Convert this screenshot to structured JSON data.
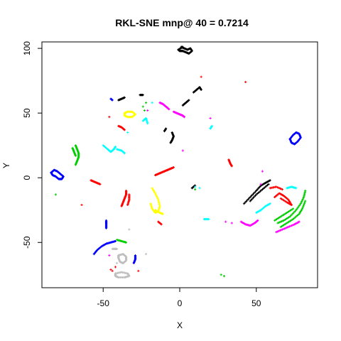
{
  "chart_data": {
    "type": "scatter",
    "title": "RKL-SNE mnp@ 40 = 0.7214",
    "xlabel": "X",
    "ylabel": "Y",
    "xlim": [
      -90,
      90
    ],
    "ylim": [
      -85,
      105
    ],
    "x_ticks": [
      -50,
      0,
      50
    ],
    "y_ticks": [
      -50,
      0,
      50,
      100
    ],
    "grid": false,
    "legend": "none",
    "clusters": [
      {
        "color": "#000000",
        "shape": "loop",
        "points": [
          [
            1,
            101
          ],
          [
            3,
            100
          ],
          [
            5,
            99
          ],
          [
            7,
            100
          ],
          [
            8,
            98
          ],
          [
            6,
            96
          ],
          [
            4,
            97
          ],
          [
            2,
            98
          ],
          [
            0,
            98
          ],
          [
            -1,
            99
          ],
          [
            2,
            101
          ]
        ]
      },
      {
        "color": "#000000",
        "shape": "stroke",
        "points": [
          [
            9,
            66
          ],
          [
            11,
            68
          ],
          [
            13,
            70
          ],
          [
            14,
            68
          ]
        ]
      },
      {
        "color": "#000000",
        "shape": "stroke",
        "points": [
          [
            2,
            56
          ],
          [
            4,
            58
          ],
          [
            6,
            60
          ]
        ]
      },
      {
        "color": "#000000",
        "shape": "stroke",
        "points": [
          [
            -5,
            35
          ],
          [
            -4,
            32
          ],
          [
            -5,
            29
          ],
          [
            -6,
            27
          ]
        ]
      },
      {
        "color": "#000000",
        "shape": "stroke",
        "points": [
          [
            -10,
            36
          ],
          [
            -9,
            38
          ]
        ]
      },
      {
        "color": "#000000",
        "shape": "stroke",
        "points": [
          [
            -40,
            60
          ],
          [
            -38,
            61
          ],
          [
            -36,
            62
          ]
        ]
      },
      {
        "color": "#000000",
        "shape": "stroke",
        "points": [
          [
            -26,
            64
          ],
          [
            -24,
            64
          ]
        ]
      },
      {
        "color": "#000000",
        "shape": "stroke",
        "points": [
          [
            42,
            -20
          ],
          [
            46,
            -15
          ],
          [
            50,
            -10
          ],
          [
            53,
            -6
          ],
          [
            56,
            -4
          ],
          [
            59,
            -2
          ]
        ]
      },
      {
        "color": "#000000",
        "shape": "stroke",
        "points": [
          [
            46,
            -18
          ],
          [
            50,
            -13
          ],
          [
            54,
            -9
          ],
          [
            58,
            -5
          ]
        ]
      },
      {
        "color": "#000000",
        "shape": "stroke",
        "points": [
          [
            8,
            -8
          ],
          [
            10,
            -6
          ]
        ]
      },
      {
        "color": "#0000ff",
        "shape": "loop",
        "points": [
          [
            -84,
            4
          ],
          [
            -82,
            6
          ],
          [
            -80,
            5
          ],
          [
            -78,
            3
          ],
          [
            -76,
            1
          ],
          [
            -77,
            -1
          ],
          [
            -79,
            -1
          ],
          [
            -81,
            1
          ],
          [
            -83,
            2
          ]
        ]
      },
      {
        "color": "#0000ff",
        "shape": "loop",
        "points": [
          [
            72,
            30
          ],
          [
            74,
            33
          ],
          [
            76,
            35
          ],
          [
            78,
            34
          ],
          [
            79,
            31
          ],
          [
            77,
            28
          ],
          [
            75,
            26
          ],
          [
            73,
            27
          ],
          [
            72,
            30
          ]
        ]
      },
      {
        "color": "#0000ff",
        "shape": "stroke",
        "points": [
          [
            -56,
            -59
          ],
          [
            -54,
            -56
          ],
          [
            -51,
            -53
          ],
          [
            -48,
            -51
          ],
          [
            -45,
            -50
          ],
          [
            -42,
            -49
          ]
        ]
      },
      {
        "color": "#0000ff",
        "shape": "stroke",
        "points": [
          [
            -48,
            -33
          ],
          [
            -48,
            -36
          ],
          [
            -48,
            -39
          ]
        ]
      },
      {
        "color": "#0000ff",
        "shape": "stroke",
        "points": [
          [
            -29,
            -60
          ],
          [
            -29,
            -63
          ],
          [
            -30,
            -66
          ]
        ]
      },
      {
        "color": "#0000ff",
        "shape": "stroke",
        "points": [
          [
            -45,
            61
          ],
          [
            -44,
            60
          ]
        ]
      },
      {
        "color": "#00cd00",
        "shape": "stroke",
        "points": [
          [
            -68,
            25
          ],
          [
            -67,
            22
          ],
          [
            -66,
            19
          ],
          [
            -66,
            16
          ],
          [
            -67,
            13
          ],
          [
            -68,
            10
          ]
        ]
      },
      {
        "color": "#00cd00",
        "shape": "stroke",
        "points": [
          [
            -70,
            23
          ],
          [
            -69,
            20
          ],
          [
            -68,
            17
          ]
        ]
      },
      {
        "color": "#00cd00",
        "shape": "stroke",
        "points": [
          [
            64,
            -35
          ],
          [
            68,
            -33
          ],
          [
            72,
            -30
          ],
          [
            76,
            -25
          ],
          [
            79,
            -20
          ],
          [
            81,
            -15
          ],
          [
            82,
            -10
          ]
        ]
      },
      {
        "color": "#00cd00",
        "shape": "stroke",
        "points": [
          [
            66,
            -38
          ],
          [
            70,
            -35
          ],
          [
            74,
            -32
          ],
          [
            78,
            -28
          ],
          [
            80,
            -24
          ],
          [
            82,
            -18
          ]
        ]
      },
      {
        "color": "#00cd00",
        "shape": "stroke",
        "points": [
          [
            62,
            -33
          ],
          [
            66,
            -30
          ],
          [
            70,
            -27
          ],
          [
            74,
            -24
          ]
        ]
      },
      {
        "color": "#00cd00",
        "shape": "stroke",
        "points": [
          [
            -41,
            -48
          ],
          [
            -38,
            -49
          ],
          [
            -35,
            -50
          ]
        ]
      },
      {
        "color": "#00cd00",
        "shape": "dots",
        "points": [
          [
            -24,
            55
          ],
          [
            -22,
            58
          ],
          [
            -23,
            52
          ],
          [
            -81,
            -13
          ],
          [
            27,
            -75
          ],
          [
            29,
            -76
          ],
          [
            10,
            -9
          ]
        ]
      },
      {
        "color": "#ff0000",
        "shape": "stroke",
        "points": [
          [
            -16,
            2
          ],
          [
            -14,
            3
          ],
          [
            -12,
            4
          ],
          [
            -10,
            5
          ],
          [
            -8,
            6
          ],
          [
            -6,
            7
          ],
          [
            -4,
            8
          ]
        ]
      },
      {
        "color": "#ff0000",
        "shape": "stroke",
        "points": [
          [
            -38,
            -22
          ],
          [
            -37,
            -19
          ],
          [
            -36,
            -16
          ],
          [
            -35,
            -13
          ],
          [
            -35,
            -10
          ]
        ]
      },
      {
        "color": "#ff0000",
        "shape": "stroke",
        "points": [
          [
            -34,
            -21
          ],
          [
            -33,
            -17
          ],
          [
            -33,
            -13
          ]
        ]
      },
      {
        "color": "#ff0000",
        "shape": "stroke",
        "points": [
          [
            -58,
            -2
          ],
          [
            -56,
            -3
          ],
          [
            -54,
            -4
          ],
          [
            -52,
            -5
          ]
        ]
      },
      {
        "color": "#ff0000",
        "shape": "stroke",
        "points": [
          [
            -40,
            40
          ],
          [
            -38,
            39
          ],
          [
            -36,
            37
          ]
        ]
      },
      {
        "color": "#ff0000",
        "shape": "stroke",
        "points": [
          [
            62,
            -15
          ],
          [
            65,
            -12
          ],
          [
            68,
            -14
          ],
          [
            71,
            -17
          ],
          [
            73,
            -21
          ],
          [
            70,
            -19
          ],
          [
            66,
            -16
          ]
        ]
      },
      {
        "color": "#ff0000",
        "shape": "stroke",
        "points": [
          [
            59,
            -8
          ],
          [
            63,
            -7
          ],
          [
            67,
            -9
          ]
        ]
      },
      {
        "color": "#ff0000",
        "shape": "stroke",
        "points": [
          [
            32,
            14
          ],
          [
            33,
            11
          ],
          [
            34,
            9
          ]
        ]
      },
      {
        "color": "#ff0000",
        "shape": "stroke",
        "points": [
          [
            -14,
            -34
          ],
          [
            -12,
            -36
          ]
        ]
      },
      {
        "color": "#ff0000",
        "shape": "dots",
        "points": [
          [
            -45,
            -71
          ],
          [
            -42,
            -69
          ],
          [
            -44,
            -72
          ],
          [
            -27,
            -72
          ],
          [
            -64,
            -21
          ],
          [
            -46,
            47
          ],
          [
            14,
            78
          ],
          [
            43,
            74
          ]
        ]
      },
      {
        "color": "#ffff00",
        "shape": "loop",
        "points": [
          [
            -36,
            50
          ],
          [
            -34,
            51
          ],
          [
            -31,
            51
          ],
          [
            -29,
            49
          ],
          [
            -31,
            47
          ],
          [
            -34,
            47
          ],
          [
            -36,
            48
          ]
        ]
      },
      {
        "color": "#ffff00",
        "shape": "stroke",
        "points": [
          [
            -18,
            -8
          ],
          [
            -16,
            -12
          ],
          [
            -14,
            -17
          ],
          [
            -13,
            -22
          ],
          [
            -14,
            -26
          ],
          [
            -16,
            -27
          ],
          [
            -18,
            -24
          ],
          [
            -19,
            -20
          ]
        ]
      },
      {
        "color": "#ffff00",
        "shape": "stroke",
        "points": [
          [
            -16,
            -25
          ],
          [
            -13,
            -27
          ],
          [
            -11,
            -28
          ]
        ]
      },
      {
        "color": "#ff00ff",
        "shape": "stroke",
        "points": [
          [
            -13,
            58
          ],
          [
            -11,
            57
          ],
          [
            -9,
            55
          ],
          [
            -7,
            53
          ]
        ]
      },
      {
        "color": "#ff00ff",
        "shape": "stroke",
        "points": [
          [
            -4,
            51
          ],
          [
            -2,
            50
          ],
          [
            0,
            49
          ],
          [
            2,
            48
          ],
          [
            3,
            47
          ]
        ]
      },
      {
        "color": "#ff00ff",
        "shape": "stroke",
        "points": [
          [
            63,
            -42
          ],
          [
            67,
            -40
          ],
          [
            71,
            -38
          ],
          [
            75,
            -36
          ],
          [
            78,
            -34
          ]
        ]
      },
      {
        "color": "#ff00ff",
        "shape": "stroke",
        "points": [
          [
            40,
            -34
          ],
          [
            43,
            -36
          ],
          [
            46,
            -37
          ],
          [
            49,
            -35
          ],
          [
            51,
            -33
          ]
        ]
      },
      {
        "color": "#ff00ff",
        "shape": "dots",
        "points": [
          [
            54,
            5
          ],
          [
            53,
            -5
          ],
          [
            -46,
            -60
          ],
          [
            2,
            21
          ],
          [
            30,
            -34
          ],
          [
            34,
            -35
          ],
          [
            20,
            46
          ],
          [
            -21,
            52
          ]
        ]
      },
      {
        "color": "#00ffff",
        "shape": "stroke",
        "points": [
          [
            -50,
            25
          ],
          [
            -47,
            22
          ],
          [
            -45,
            20
          ],
          [
            -43,
            22
          ],
          [
            -42,
            24
          ]
        ]
      },
      {
        "color": "#00ffff",
        "shape": "stroke",
        "points": [
          [
            -41,
            22
          ],
          [
            -38,
            21
          ],
          [
            -36,
            19
          ]
        ]
      },
      {
        "color": "#00ffff",
        "shape": "stroke",
        "points": [
          [
            50,
            -27
          ],
          [
            53,
            -25
          ],
          [
            56,
            -22
          ],
          [
            59,
            -20
          ]
        ]
      },
      {
        "color": "#00ffff",
        "shape": "stroke",
        "points": [
          [
            70,
            -8
          ],
          [
            73,
            -7
          ],
          [
            76,
            -8
          ]
        ]
      },
      {
        "color": "#00ffff",
        "shape": "stroke",
        "points": [
          [
            -24,
            44
          ],
          [
            -22,
            46
          ],
          [
            -21,
            42
          ]
        ]
      },
      {
        "color": "#00ffff",
        "shape": "stroke",
        "points": [
          [
            16,
            -32
          ],
          [
            19,
            -32
          ]
        ]
      },
      {
        "color": "#00ffff",
        "shape": "stroke",
        "points": [
          [
            20,
            38
          ],
          [
            21,
            40
          ]
        ]
      },
      {
        "color": "#00ffff",
        "shape": "dots",
        "points": [
          [
            10,
            -7
          ],
          [
            13,
            -8
          ],
          [
            -18,
            58
          ],
          [
            -34,
            35
          ]
        ]
      },
      {
        "color": "#bebebe",
        "shape": "loop",
        "points": [
          [
            -40,
            -60
          ],
          [
            -37,
            -59
          ],
          [
            -35,
            -61
          ],
          [
            -35,
            -64
          ],
          [
            -37,
            -66
          ],
          [
            -39,
            -65
          ],
          [
            -40,
            -62
          ]
        ]
      },
      {
        "color": "#bebebe",
        "shape": "loop",
        "points": [
          [
            -42,
            -74
          ],
          [
            -38,
            -73
          ],
          [
            -34,
            -74
          ],
          [
            -33,
            -76
          ],
          [
            -36,
            -77
          ],
          [
            -40,
            -77
          ],
          [
            -42,
            -76
          ]
        ]
      },
      {
        "color": "#bebebe",
        "shape": "stroke",
        "points": [
          [
            -44,
            -55
          ],
          [
            -41,
            -55
          ]
        ]
      },
      {
        "color": "#bebebe",
        "shape": "dots",
        "points": [
          [
            -33,
            -40
          ],
          [
            -22,
            -59
          ],
          [
            -41,
            -66
          ]
        ]
      }
    ]
  }
}
